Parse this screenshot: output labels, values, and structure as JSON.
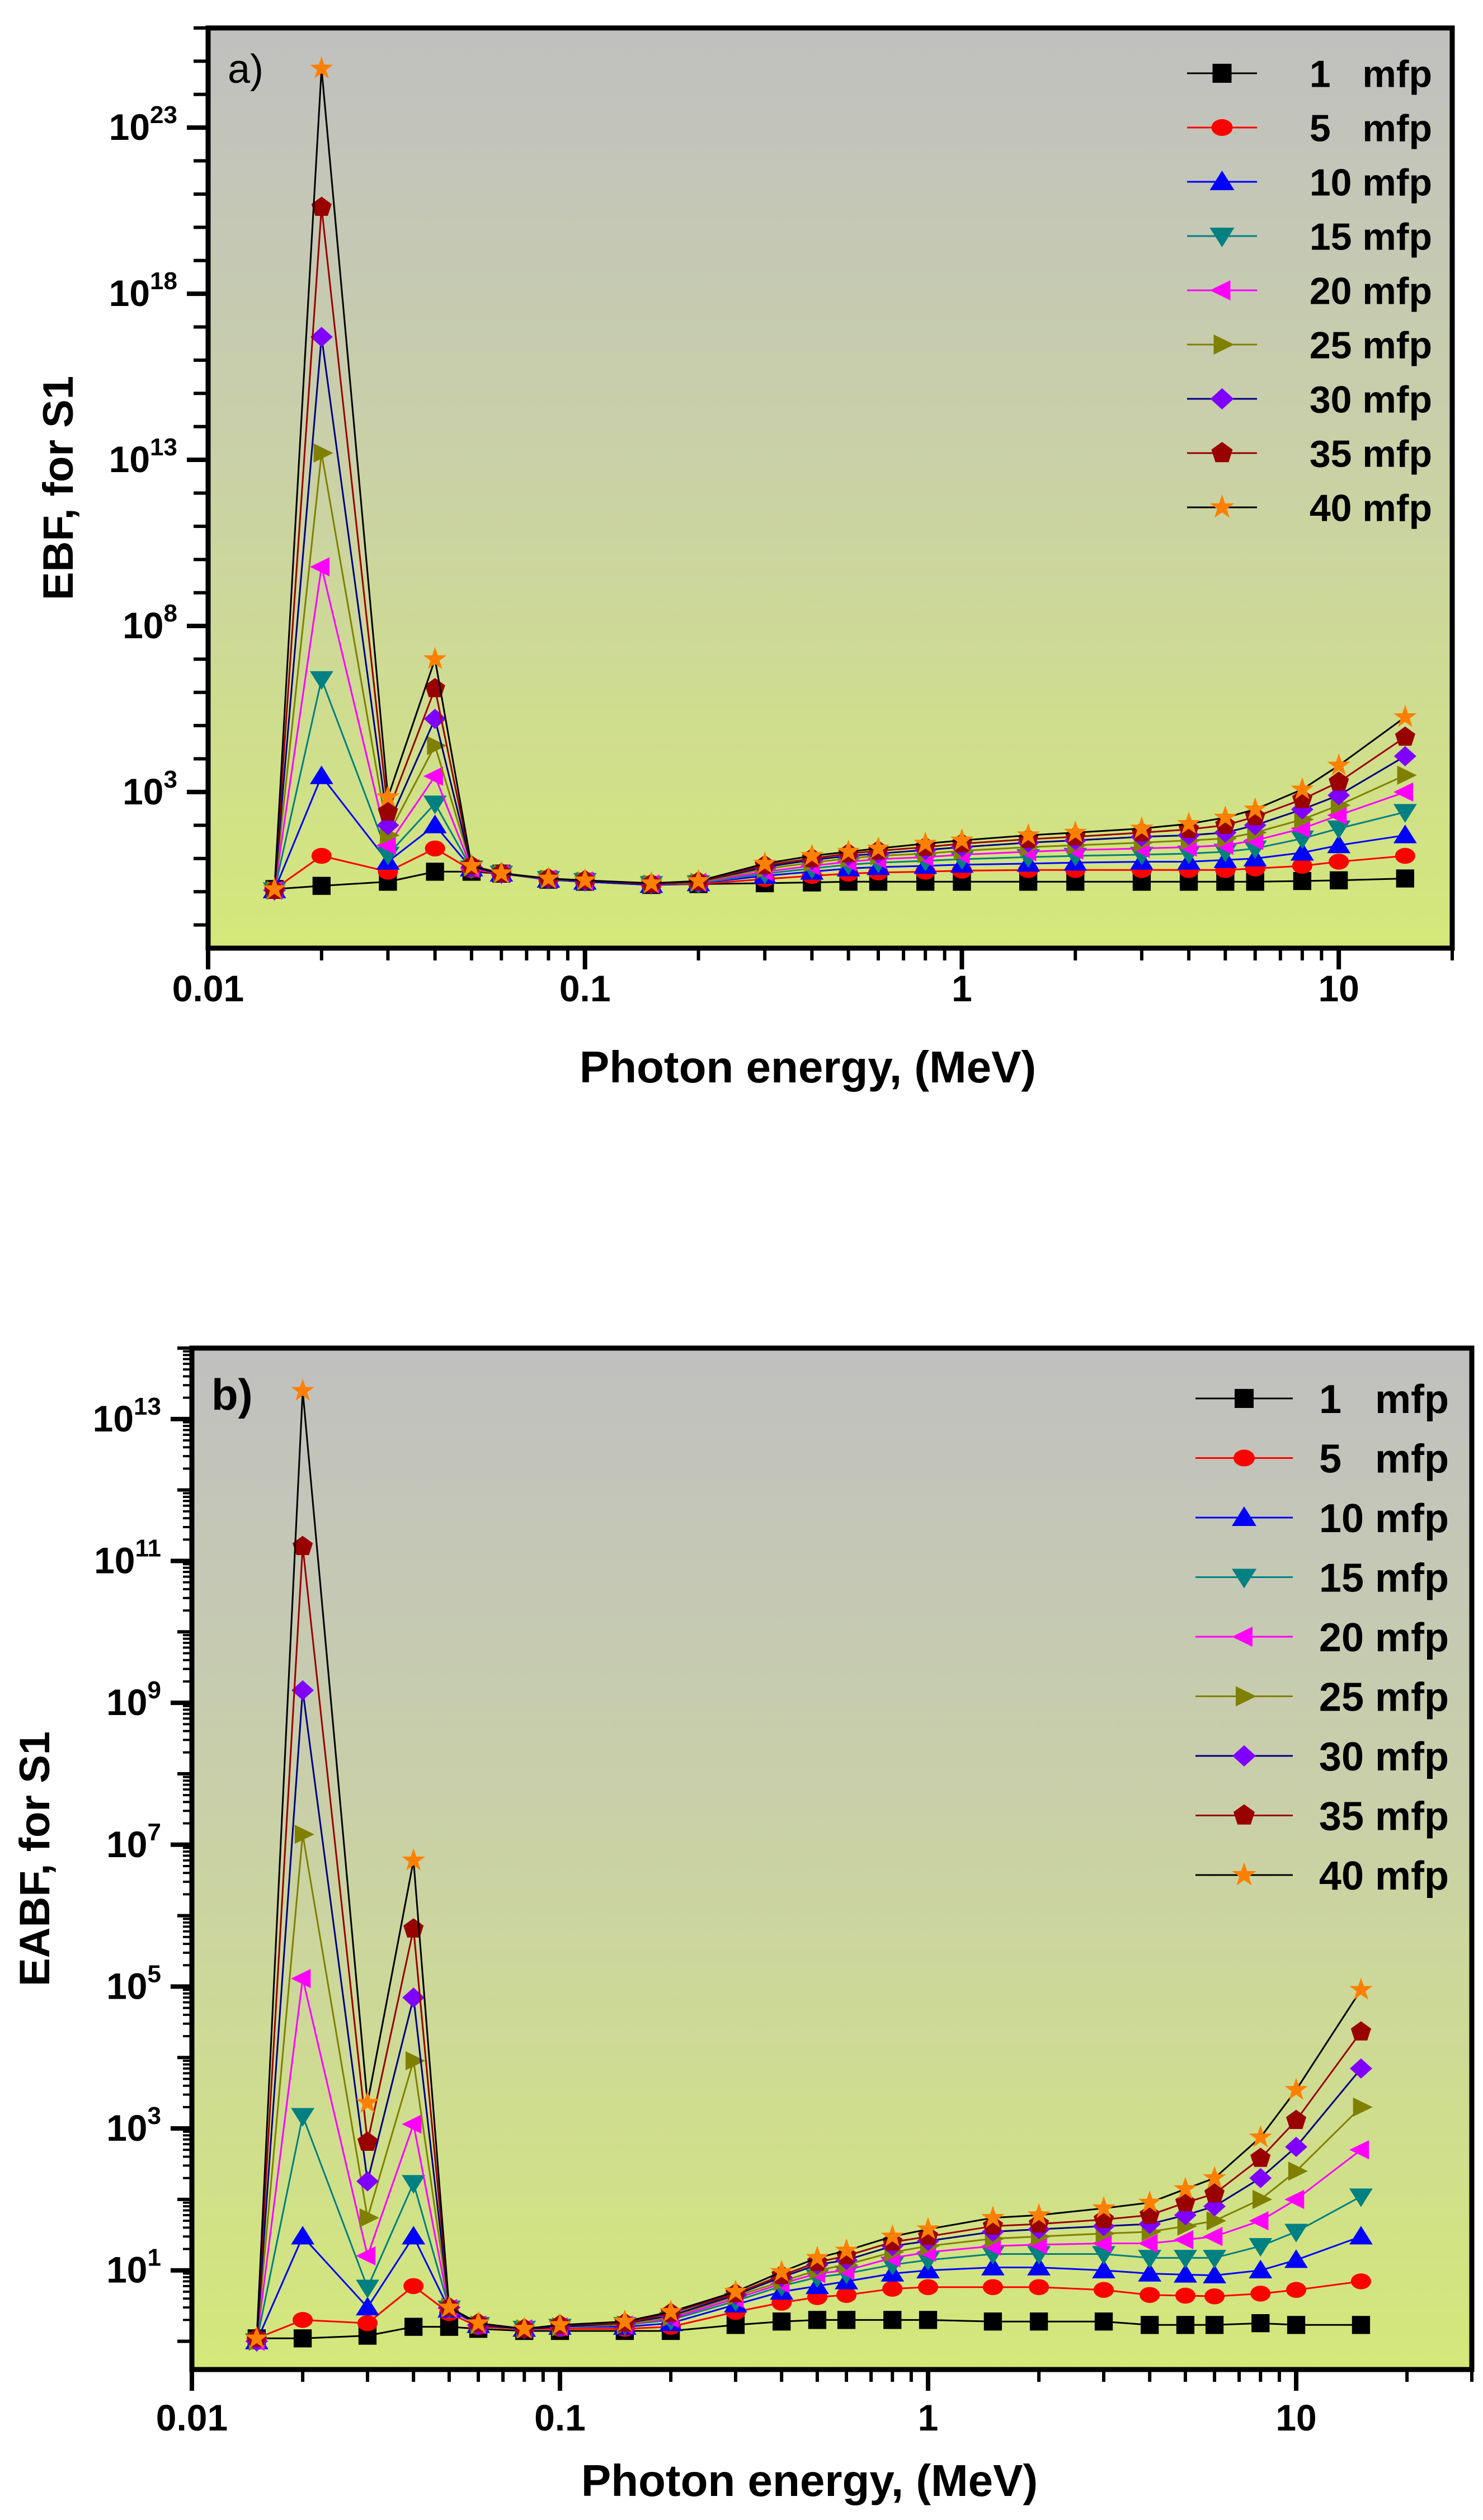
{
  "chart_data": [
    {
      "type": "line",
      "panel_label": "a)",
      "title": "",
      "xlabel": "Photon energy, (MeV)",
      "ylabel": "EBF, for S1",
      "xscale": "log",
      "yscale": "log",
      "xlim": [
        0.01,
        20
      ],
      "ylim": [
        0.02,
        1e+26
      ],
      "x_ticks": [
        {
          "value": 0.01,
          "label": "0.01"
        },
        {
          "value": 0.1,
          "label": "0.1"
        },
        {
          "value": 1,
          "label": "1"
        },
        {
          "value": 10,
          "label": "10"
        }
      ],
      "y_tick_exponents": [
        3,
        8,
        13,
        18,
        23
      ],
      "legend_position": "top-right",
      "grid": false,
      "x": [
        0.015,
        0.02,
        0.03,
        0.04,
        0.05,
        0.06,
        0.08,
        0.1,
        0.15,
        0.2,
        0.3,
        0.4,
        0.5,
        0.6,
        0.8,
        1,
        1.5,
        2,
        3,
        4,
        5,
        6,
        8,
        10,
        15
      ],
      "series": [
        {
          "name": "1 mfp",
          "marker": "square",
          "color": "#000000",
          "line_color": "#000000",
          "values": [
            1.2,
            1.5,
            2,
            4,
            4,
            3.5,
            2.3,
            2,
            1.6,
            1.7,
            1.8,
            1.9,
            2,
            2,
            2,
            2,
            2,
            2,
            2,
            2,
            2,
            2,
            2.1,
            2.2,
            2.5
          ]
        },
        {
          "name": "5 mfp",
          "marker": "circle",
          "color": "#ff0000",
          "line_color": "#ff0000",
          "values": [
            1.2,
            12,
            4,
            20,
            4.5,
            3.5,
            2.3,
            2,
            1.6,
            1.7,
            2.4,
            3,
            3.5,
            3.8,
            4,
            4.3,
            4.5,
            4.5,
            4.5,
            4.5,
            4.5,
            5,
            6,
            8,
            12
          ]
        },
        {
          "name": "10 mfp",
          "marker": "triangle-up",
          "color": "#0000ff",
          "line_color": "#0000ff",
          "values": [
            1.1,
            3000,
            8,
            100,
            5,
            3.5,
            2.3,
            2,
            1.6,
            1.8,
            3,
            4,
            5,
            5.5,
            6,
            6.5,
            7,
            7.5,
            8,
            8,
            9,
            10,
            15,
            25,
            50
          ]
        },
        {
          "name": "15 mfp",
          "marker": "triangle-down",
          "color": "#008080",
          "line_color": "#008080",
          "values": [
            1.1,
            2500000.0,
            13,
            450,
            5,
            3.5,
            2.4,
            2.1,
            1.7,
            1.8,
            3.5,
            5,
            6.5,
            7.5,
            8.5,
            9.5,
            11,
            12,
            13,
            14,
            16,
            20,
            40,
            80,
            250
          ]
        },
        {
          "name": "20 mfp",
          "marker": "triangle-left",
          "color": "#ff00ff",
          "line_color": "#ff00ff",
          "values": [
            1.1,
            6000000000.0,
            25,
            3000,
            5,
            3.5,
            2.4,
            2.1,
            1.7,
            1.9,
            4,
            6,
            8,
            9.5,
            11,
            13,
            16,
            18,
            20,
            22,
            25,
            35,
            80,
            200,
            1000
          ]
        },
        {
          "name": "25 mfp",
          "marker": "triangle-right",
          "color": "#808000",
          "line_color": "#808000",
          "values": [
            1.1,
            16000000000000.0,
            50,
            25000,
            5.5,
            3.5,
            2.4,
            2.1,
            1.7,
            1.9,
            4.8,
            7.5,
            10,
            12,
            14,
            17,
            22,
            25,
            30,
            35,
            40,
            60,
            150,
            400,
            3200
          ]
        },
        {
          "name": "30 mfp",
          "marker": "diamond",
          "color": "#8000ff",
          "line_color": "#000080",
          "values": [
            1.1,
            5e+16,
            100,
            160000,
            5.5,
            3.5,
            2.5,
            2.1,
            1.7,
            2,
            5.5,
            9,
            12,
            14,
            18,
            22,
            30,
            35,
            45,
            50,
            60,
            100,
            300,
            800,
            12000
          ]
        },
        {
          "name": "35 mfp",
          "marker": "pentagon",
          "color": "#990000",
          "line_color": "#990000",
          "values": [
            1.1,
            4e+20,
            250,
            1300000.0,
            6,
            3.6,
            2.5,
            2.2,
            1.7,
            2,
            6.2,
            10,
            14,
            17,
            22,
            28,
            38,
            45,
            60,
            75,
            100,
            180,
            600,
            2000,
            45000
          ]
        },
        {
          "name": "40 mfp",
          "marker": "star",
          "color": "#ff8000",
          "line_color": "#000000",
          "values": [
            1.2,
            6e+24,
            700,
            10000000.0,
            6,
            3.6,
            2.5,
            2.2,
            1.8,
            2.1,
            7,
            12,
            16,
            20,
            28,
            35,
            50,
            60,
            80,
            110,
            170,
            300,
            1200,
            6300,
            180000
          ]
        }
      ]
    },
    {
      "type": "line",
      "panel_label": "b)",
      "title": "",
      "xlabel": "Photon energy, (MeV)",
      "ylabel": "EABF, for S1",
      "xscale": "log",
      "yscale": "log",
      "xlim": [
        0.01,
        30
      ],
      "ylim": [
        0.4,
        100000000000000.0
      ],
      "x_ticks": [
        {
          "value": 0.01,
          "label": "0.01"
        },
        {
          "value": 0.1,
          "label": "0.1"
        },
        {
          "value": 1,
          "label": "1"
        },
        {
          "value": 10,
          "label": "10"
        }
      ],
      "y_tick_exponents": [
        1,
        3,
        5,
        7,
        9,
        11,
        13
      ],
      "legend_position": "top-right",
      "grid": false,
      "x": [
        0.015,
        0.02,
        0.03,
        0.04,
        0.05,
        0.06,
        0.08,
        0.1,
        0.15,
        0.2,
        0.3,
        0.4,
        0.5,
        0.6,
        0.8,
        1,
        1.5,
        2,
        3,
        4,
        5,
        6,
        8,
        10,
        15
      ],
      "series": [
        {
          "name": "1 mfp",
          "marker": "square",
          "color": "#000000",
          "line_color": "#000000",
          "values": [
            1.1,
            1.1,
            1.2,
            1.6,
            1.6,
            1.5,
            1.4,
            1.4,
            1.4,
            1.4,
            1.7,
            1.9,
            2,
            2,
            2,
            2,
            1.9,
            1.9,
            1.9,
            1.7,
            1.7,
            1.7,
            1.8,
            1.7,
            1.7
          ]
        },
        {
          "name": "5 mfp",
          "marker": "circle",
          "color": "#ff0000",
          "line_color": "#ff0000",
          "values": [
            1.1,
            2,
            1.8,
            6,
            2.5,
            1.6,
            1.5,
            1.5,
            1.5,
            1.6,
            2.6,
            3.5,
            4.2,
            4.5,
            5.5,
            5.8,
            5.8,
            5.8,
            5.3,
            4.5,
            4.4,
            4.3,
            4.7,
            5.3,
            7
          ]
        },
        {
          "name": "10 mfp",
          "marker": "triangle-up",
          "color": "#0000ff",
          "line_color": "#0000ff",
          "values": [
            1.0,
            30,
            3,
            30,
            2.8,
            1.7,
            1.5,
            1.6,
            1.6,
            1.8,
            3.3,
            5,
            6,
            7,
            9,
            10,
            11,
            11,
            10,
            9,
            8.7,
            8.5,
            10,
            14,
            30
          ]
        },
        {
          "name": "15 mfp",
          "marker": "triangle-down",
          "color": "#008080",
          "line_color": "#008080",
          "values": [
            1.0,
            1500,
            5.7,
            170,
            2.9,
            1.7,
            1.5,
            1.6,
            1.7,
            2,
            3.7,
            6,
            8,
            9,
            12,
            14,
            17,
            17,
            17,
            15,
            15,
            15,
            22,
            35,
            110
          ]
        },
        {
          "name": "20 mfp",
          "marker": "triangle-left",
          "color": "#ff00ff",
          "line_color": "#ff00ff",
          "values": [
            1.0,
            130000.0,
            16,
            1150,
            2.9,
            1.7,
            1.5,
            1.6,
            1.7,
            2.1,
            4,
            6.5,
            9,
            10,
            15,
            18,
            22,
            23,
            24,
            24,
            27,
            30,
            50,
            100,
            500
          ]
        },
        {
          "name": "25 mfp",
          "marker": "triangle-right",
          "color": "#808000",
          "line_color": "#808000",
          "values": [
            1.0,
            14000000.0,
            55,
            9000,
            3,
            1.7,
            1.5,
            1.6,
            1.7,
            2.2,
            4.3,
            7,
            10,
            12,
            18,
            22,
            28,
            30,
            33,
            35,
            42,
            50,
            100,
            250,
            2000
          ]
        },
        {
          "name": "30 mfp",
          "marker": "diamond",
          "color": "#8000ff",
          "line_color": "#000080",
          "values": [
            1.0,
            1500000000.0,
            180,
            70000,
            3,
            1.7,
            1.5,
            1.6,
            1.8,
            2.3,
            4.5,
            8,
            12,
            14,
            22,
            26,
            35,
            38,
            42,
            45,
            60,
            80,
            200,
            550,
            7000
          ]
        },
        {
          "name": "35 mfp",
          "marker": "pentagon",
          "color": "#990000",
          "line_color": "#990000",
          "values": [
            1.1,
            160000000000.0,
            640,
            650000,
            3,
            1.8,
            1.5,
            1.7,
            1.8,
            2.5,
            4.7,
            8.5,
            13,
            16,
            25,
            30,
            42,
            45,
            52,
            60,
            90,
            120,
            380,
            1300,
            23000
          ]
        },
        {
          "name": "40 mfp",
          "marker": "star",
          "color": "#ff8000",
          "line_color": "#000000",
          "values": [
            1.1,
            25000000000000.0,
            2300,
            6000000.0,
            3,
            1.8,
            1.5,
            1.7,
            1.9,
            2.6,
            5,
            9.5,
            15,
            19,
            30,
            38,
            55,
            60,
            75,
            90,
            140,
            200,
            750,
            3500,
            90000
          ]
        }
      ]
    }
  ]
}
